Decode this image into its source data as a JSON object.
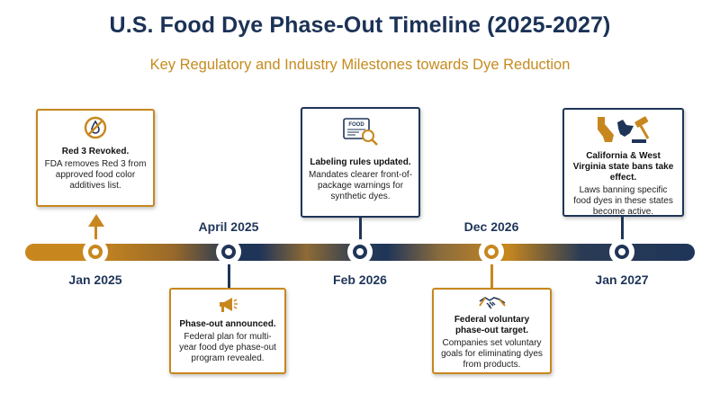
{
  "header": {
    "title": "U.S. Food Dye Phase-Out Timeline (2025-2027)",
    "subtitle": "Key Regulatory and Industry Milestones towards Dye Reduction"
  },
  "timeline": {
    "dates": [
      "Jan 2025",
      "April 2025",
      "Feb 2026",
      "Dec 2026",
      "Jan 2027"
    ],
    "milestones": [
      {
        "date": "Jan 2025",
        "title": "Red 3 Revoked.",
        "description": "FDA removes Red 3 from approved food color additives list.",
        "icon": "no-dye-icon",
        "color": "#c8871e"
      },
      {
        "date": "April 2025",
        "title": "Phase-out announced.",
        "description": "Federal plan for multi-year food dye phase-out program revealed.",
        "icon": "megaphone-icon",
        "color": "#1f3558"
      },
      {
        "date": "Feb 2026",
        "title": "Labeling rules updated.",
        "description": "Mandates clearer front-of-package warnings for synthetic dyes.",
        "icon": "food-label-magnifier-icon",
        "icon_label": "FOOD",
        "color": "#1f3558"
      },
      {
        "date": "Dec 2026",
        "title": "Federal voluntary phase-out target.",
        "description": "Companies set voluntary goals for eliminating dyes from products.",
        "icon": "handshake-icon",
        "color": "#c8871e"
      },
      {
        "date": "Jan 2027",
        "title": "California & West Virginia state bans take effect.",
        "description": "Laws banning specific food dyes in these states become active.",
        "icon": "states-gavel-icon",
        "color": "#1f3558"
      }
    ]
  }
}
